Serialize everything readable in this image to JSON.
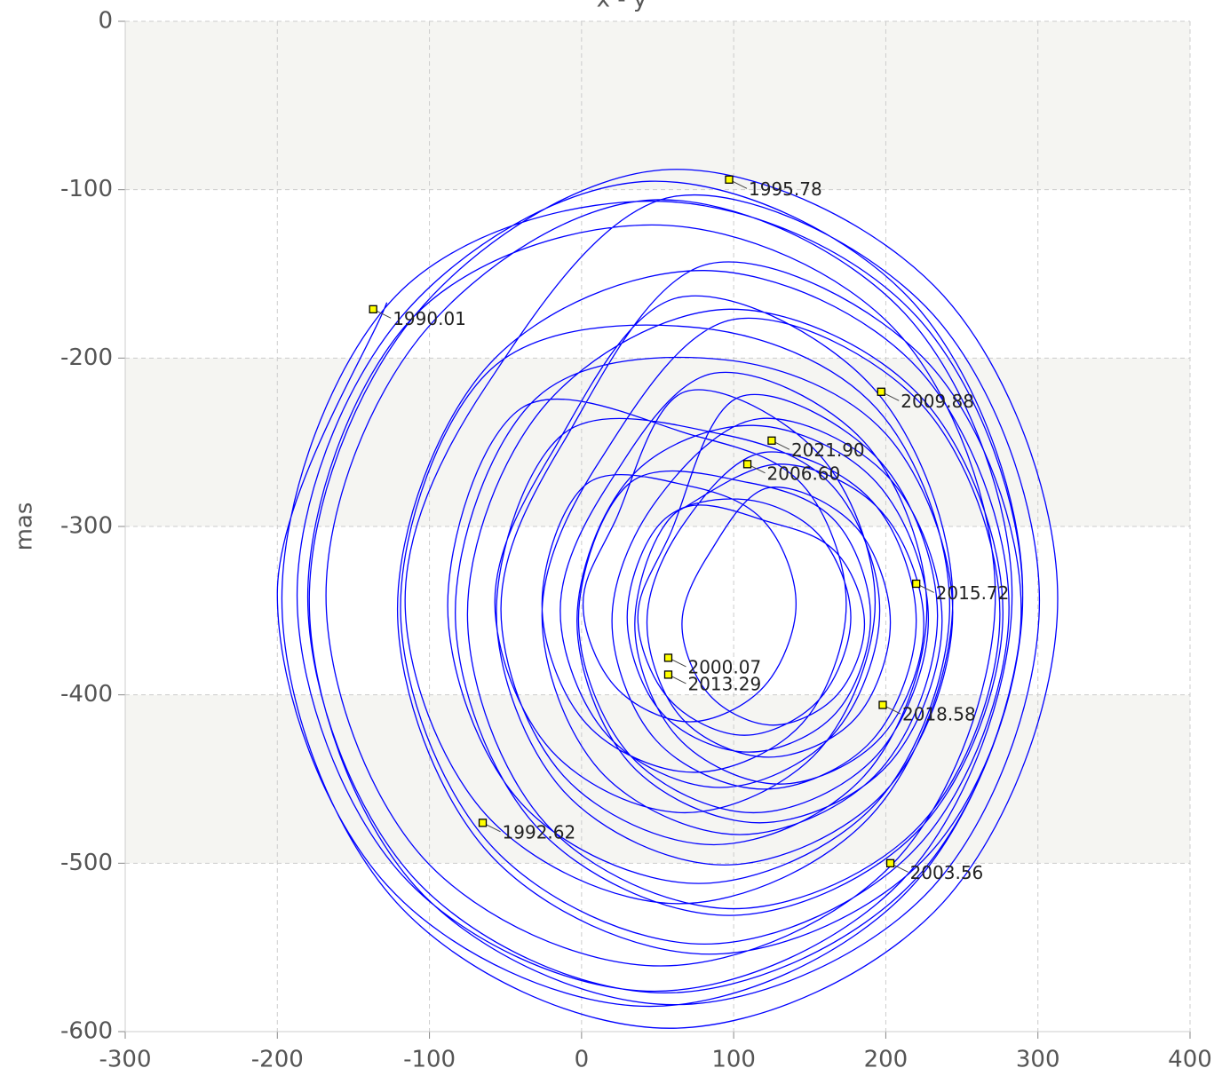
{
  "chart_data": {
    "type": "line",
    "title": "x - y",
    "ylabel": "mas",
    "xlim": [
      -300,
      400
    ],
    "xticks": [
      -300,
      -200,
      -100,
      0,
      100,
      200,
      300,
      400
    ],
    "ylim": [
      -600,
      0
    ],
    "yticks": [
      0,
      -100,
      -200,
      -300,
      -400,
      -500,
      -600
    ],
    "grid": true,
    "series": [
      {
        "color": "#0000ff",
        "x": [
          -128,
          -200,
          -128,
          45,
          218,
          290,
          218,
          45,
          -118,
          -187,
          -118,
          48,
          214,
          283,
          214,
          48,
          -104,
          -168,
          -104,
          52,
          208,
          272,
          208,
          52,
          -111,
          -180,
          -111,
          55,
          221,
          290,
          221,
          55,
          -122,
          -197,
          -122,
          58,
          238,
          313,
          238,
          58,
          -109,
          -179,
          -109,
          61,
          231,
          301,
          231,
          61,
          -63,
          -116,
          -63,
          64,
          191,
          244,
          191,
          64,
          -20,
          -57,
          -20,
          68,
          156,
          193,
          156,
          68,
          22,
          1,
          22,
          71,
          120,
          141,
          120,
          71,
          3,
          -26,
          3,
          74,
          145,
          174,
          145,
          74,
          -40,
          -88,
          -40,
          77,
          194,
          242,
          194,
          77,
          -60,
          -119,
          -60,
          81,
          222,
          281,
          222,
          81,
          -61,
          -121,
          -61,
          84,
          229,
          289,
          229,
          84,
          -12,
          -53,
          -12,
          87,
          186,
          227,
          186,
          87,
          17,
          -14,
          17,
          91,
          165,
          196,
          165,
          91,
          -12,
          -56,
          -12,
          94,
          200,
          244,
          200,
          94,
          -30,
          -83,
          -30,
          97,
          224,
          277,
          224,
          97,
          -24,
          -75,
          -24,
          100,
          224,
          275,
          224,
          100,
          12,
          -26,
          12,
          104,
          196,
          234,
          196,
          104,
          58,
          37,
          58,
          107,
          156,
          177,
          156,
          107,
          53,
          30,
          53,
          110,
          167,
          190,
          167,
          110,
          32,
          -2,
          32,
          113,
          194,
          228,
          194,
          113,
          32,
          -3,
          32,
          117,
          202,
          237,
          202,
          117,
          49,
          20,
          49,
          120,
          191,
          220,
          191,
          120,
          66,
          43,
          66,
          123,
          180,
          203,
          180,
          123,
          84,
          66,
          84,
          126,
          168,
          186,
          168,
          126,
          63,
          35,
          63,
          130,
          197,
          225,
          197,
          130,
          63
        ],
        "values": [
          -167,
          -340,
          -513,
          -585,
          -513,
          -340,
          -167,
          -95,
          -175,
          -341,
          -507,
          -576,
          -507,
          -341,
          -175,
          -106,
          -185,
          -341,
          -497,
          -561,
          -497,
          -341,
          -185,
          -121,
          -176,
          -342,
          -508,
          -577,
          -508,
          -342,
          -176,
          -107,
          -163,
          -343,
          -523,
          -598,
          -523,
          -343,
          -163,
          -88,
          -174,
          -344,
          -514,
          -584,
          -514,
          -344,
          -174,
          -104,
          -217,
          -344,
          -471,
          -524,
          -471,
          -344,
          -217,
          -164,
          -257,
          -345,
          -433,
          -470,
          -433,
          -345,
          -257,
          -220,
          -297,
          -346,
          -395,
          -416,
          -395,
          -346,
          -297,
          -276,
          -275,
          -346,
          -417,
          -446,
          -417,
          -346,
          -275,
          -246,
          -230,
          -347,
          -464,
          -512,
          -464,
          -347,
          -230,
          -182,
          -207,
          -348,
          -489,
          -548,
          -489,
          -348,
          -207,
          -148,
          -204,
          -349,
          -494,
          -554,
          -494,
          -349,
          -204,
          -144,
          -250,
          -349,
          -448,
          -489,
          -448,
          -349,
          -250,
          -209,
          -276,
          -350,
          -424,
          -455,
          -424,
          -350,
          -276,
          -245,
          -245,
          -351,
          -457,
          -501,
          -457,
          -351,
          -245,
          -201,
          -224,
          -351,
          -478,
          -531,
          -478,
          -351,
          -224,
          -171,
          -228,
          -352,
          -476,
          -527,
          -476,
          -352,
          -228,
          -177,
          -261,
          -353,
          -445,
          -483,
          -445,
          -353,
          -261,
          -223,
          -305,
          -354,
          -403,
          -424,
          -403,
          -354,
          -305,
          -284,
          -297,
          -354,
          -411,
          -434,
          -411,
          -354,
          -297,
          -274,
          -274,
          -355,
          -436,
          -470,
          -436,
          -355,
          -274,
          -240,
          -271,
          -356,
          -441,
          -476,
          -441,
          -356,
          -271,
          -236,
          -285,
          -356,
          -427,
          -456,
          -427,
          -356,
          -285,
          -256,
          -300,
          -357,
          -414,
          -437,
          -414,
          -357,
          -300,
          -277,
          -316,
          -358,
          -400,
          -418,
          -400,
          -358,
          -316,
          -298,
          -291,
          -358,
          -425,
          -453,
          -425,
          -358,
          -291,
          -263,
          -291
        ]
      }
    ],
    "points": {
      "color": "#ffff00",
      "x": [
        -137,
        -65,
        97,
        57,
        203,
        109,
        197,
        57,
        220,
        198,
        125
      ],
      "values": [
        -171,
        -476,
        -94,
        -378,
        -500,
        -263,
        -220,
        -388,
        -334,
        -406,
        -249
      ],
      "labels": [
        "1990.01",
        "1992.62",
        "1995.78",
        "2000.07",
        "2003.56",
        "2006.60",
        "2009.88",
        "2013.29",
        "2015.72",
        "2018.58",
        "2021.90"
      ]
    }
  }
}
